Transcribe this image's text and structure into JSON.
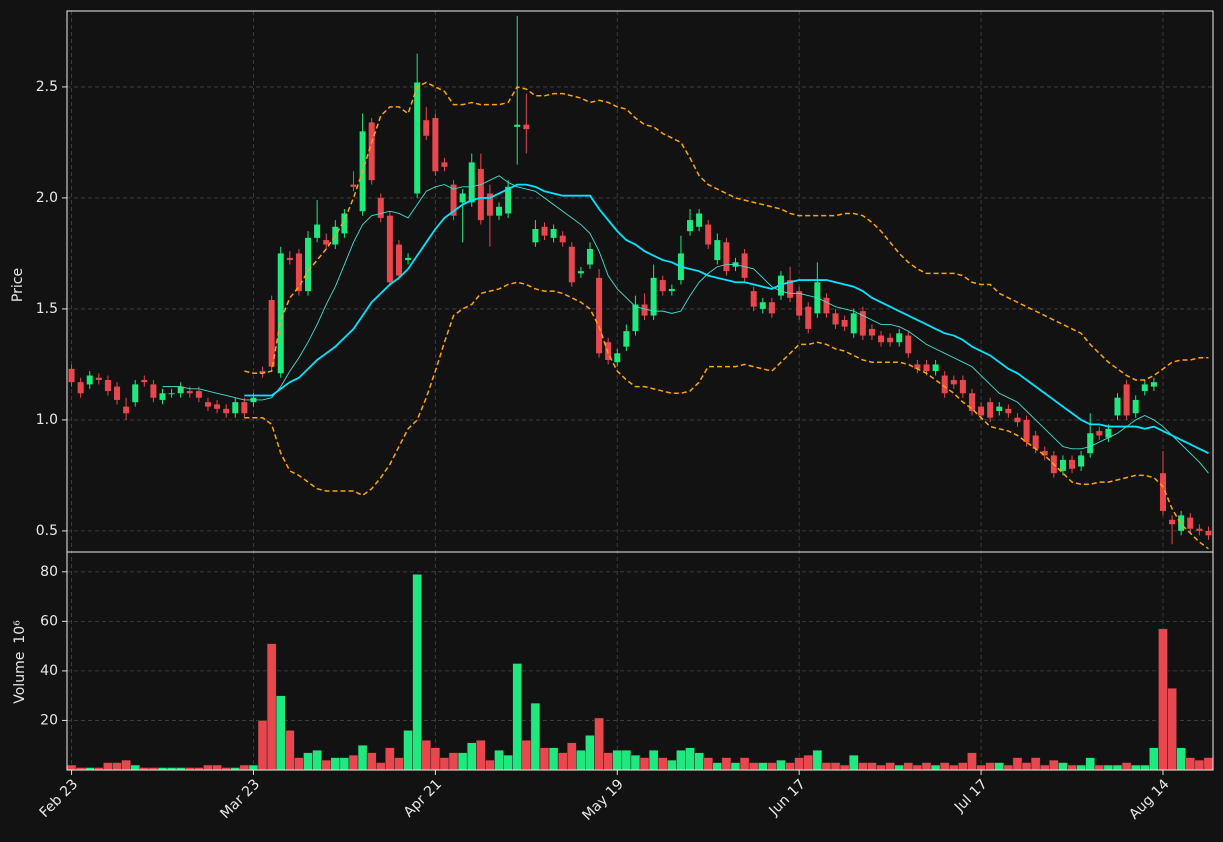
{
  "chart_data": {
    "type": "candlestick",
    "ylabel": "Price",
    "volume_label": "Volume",
    "volume_unit": "10⁶",
    "categories": [
      "Feb 23",
      null,
      null,
      null,
      null,
      null,
      null,
      null,
      null,
      null,
      null,
      null,
      null,
      null,
      null,
      null,
      null,
      null,
      null,
      null,
      "Mar 23",
      null,
      null,
      null,
      null,
      null,
      null,
      null,
      null,
      null,
      null,
      null,
      null,
      null,
      null,
      null,
      null,
      null,
      null,
      null,
      "Apr 21",
      null,
      null,
      null,
      null,
      null,
      null,
      null,
      null,
      null,
      null,
      null,
      null,
      null,
      null,
      null,
      null,
      null,
      null,
      null,
      "May 19",
      null,
      null,
      null,
      null,
      null,
      null,
      null,
      null,
      null,
      null,
      null,
      null,
      null,
      null,
      null,
      null,
      null,
      null,
      null,
      "Jun 17",
      null,
      null,
      null,
      null,
      null,
      null,
      null,
      null,
      null,
      null,
      null,
      null,
      null,
      null,
      null,
      null,
      null,
      null,
      null,
      "Jul 17",
      null,
      null,
      null,
      null,
      null,
      null,
      null,
      null,
      null,
      null,
      null,
      null,
      null,
      null,
      null,
      null,
      null,
      null,
      null,
      "Aug 14",
      null,
      null,
      null,
      null,
      null
    ],
    "open": [
      1.23,
      1.17,
      1.16,
      1.19,
      1.18,
      1.15,
      1.06,
      1.08,
      1.18,
      1.16,
      1.09,
      1.12,
      1.12,
      1.13,
      1.13,
      1.08,
      1.07,
      1.05,
      1.03,
      1.08,
      1.08,
      1.22,
      1.54,
      1.21,
      1.73,
      1.75,
      1.58,
      1.82,
      1.81,
      1.79,
      1.84,
      2.06,
      1.94,
      2.34,
      2.0,
      1.92,
      1.79,
      1.72,
      2.02,
      2.35,
      2.36,
      2.16,
      2.06,
      1.98,
      1.98,
      2.13,
      2.02,
      1.92,
      1.93,
      2.32,
      2.33,
      1.8,
      1.87,
      1.82,
      1.83,
      1.78,
      1.66,
      1.7,
      1.64,
      1.35,
      1.26,
      1.33,
      1.4,
      1.52,
      1.47,
      1.63,
      1.58,
      1.63,
      1.85,
      1.87,
      1.88,
      1.72,
      1.8,
      1.69,
      1.75,
      1.58,
      1.5,
      1.53,
      1.56,
      1.63,
      1.58,
      1.51,
      1.48,
      1.55,
      1.48,
      1.45,
      1.39,
      1.49,
      1.41,
      1.38,
      1.37,
      1.35,
      1.38,
      1.25,
      1.25,
      1.22,
      1.2,
      1.18,
      1.18,
      1.12,
      1.06,
      1.08,
      1.04,
      1.05,
      1.01,
      1.0,
      0.93,
      0.86,
      0.84,
      0.77,
      0.82,
      0.79,
      0.85,
      0.95,
      0.92,
      1.02,
      1.16,
      1.03,
      1.13,
      1.15,
      0.76,
      0.55,
      0.5,
      0.56,
      0.51,
      0.5
    ],
    "high": [
      1.25,
      1.19,
      1.22,
      1.21,
      1.2,
      1.17,
      1.1,
      1.18,
      1.2,
      1.18,
      1.14,
      1.14,
      1.17,
      1.15,
      1.15,
      1.1,
      1.09,
      1.07,
      1.1,
      1.1,
      1.12,
      1.24,
      1.56,
      1.78,
      1.76,
      1.77,
      1.85,
      1.99,
      1.84,
      1.9,
      1.95,
      2.12,
      2.38,
      2.36,
      2.02,
      1.94,
      1.81,
      1.75,
      2.65,
      2.41,
      2.38,
      2.18,
      2.08,
      2.04,
      2.2,
      2.2,
      2.06,
      1.98,
      2.08,
      2.82,
      2.47,
      1.9,
      1.89,
      1.88,
      1.85,
      1.8,
      1.69,
      1.8,
      1.68,
      1.37,
      1.32,
      1.43,
      1.56,
      1.57,
      1.7,
      1.65,
      1.61,
      1.83,
      1.95,
      1.95,
      1.9,
      1.84,
      1.82,
      1.73,
      1.77,
      1.6,
      1.55,
      1.55,
      1.67,
      1.69,
      1.6,
      1.53,
      1.71,
      1.57,
      1.5,
      1.47,
      1.5,
      1.51,
      1.43,
      1.4,
      1.39,
      1.41,
      1.4,
      1.27,
      1.27,
      1.27,
      1.22,
      1.2,
      1.2,
      1.14,
      1.08,
      1.1,
      1.08,
      1.07,
      1.03,
      1.02,
      0.95,
      0.88,
      0.86,
      0.84,
      0.84,
      0.86,
      1.03,
      0.97,
      0.98,
      1.12,
      1.18,
      1.11,
      1.18,
      1.19,
      0.86,
      0.57,
      0.59,
      0.58,
      0.53,
      0.52
    ],
    "low": [
      1.15,
      1.1,
      1.14,
      1.16,
      1.11,
      1.07,
      1.0,
      1.06,
      1.15,
      1.08,
      1.07,
      1.1,
      1.1,
      1.1,
      1.08,
      1.04,
      1.03,
      1.01,
      1.01,
      1.01,
      1.06,
      1.19,
      1.22,
      1.19,
      1.7,
      1.56,
      1.56,
      1.8,
      1.77,
      1.77,
      1.82,
      2.03,
      1.92,
      2.06,
      1.89,
      1.6,
      1.63,
      1.7,
      2.0,
      2.26,
      2.1,
      2.12,
      1.9,
      1.8,
      1.96,
      1.88,
      1.78,
      1.9,
      1.91,
      2.15,
      2.2,
      1.78,
      1.81,
      1.8,
      1.78,
      1.6,
      1.64,
      1.68,
      1.28,
      1.25,
      1.24,
      1.31,
      1.38,
      1.45,
      1.45,
      1.56,
      1.56,
      1.61,
      1.83,
      1.85,
      1.77,
      1.7,
      1.65,
      1.67,
      1.62,
      1.49,
      1.48,
      1.46,
      1.54,
      1.53,
      1.45,
      1.39,
      1.46,
      1.46,
      1.41,
      1.4,
      1.37,
      1.36,
      1.36,
      1.33,
      1.33,
      1.33,
      1.28,
      1.21,
      1.2,
      1.2,
      1.1,
      1.14,
      1.1,
      1.02,
      1.0,
      0.99,
      1.02,
      1.01,
      0.97,
      0.88,
      0.85,
      0.82,
      0.74,
      0.75,
      0.76,
      0.77,
      0.83,
      0.91,
      0.9,
      1.0,
      1.0,
      1.01,
      1.11,
      1.13,
      0.57,
      0.44,
      0.48,
      0.49,
      0.48,
      0.46
    ],
    "close": [
      1.17,
      1.12,
      1.2,
      1.18,
      1.13,
      1.09,
      1.03,
      1.16,
      1.17,
      1.1,
      1.12,
      1.12,
      1.15,
      1.12,
      1.1,
      1.06,
      1.05,
      1.03,
      1.08,
      1.03,
      1.1,
      1.21,
      1.24,
      1.75,
      1.72,
      1.58,
      1.82,
      1.88,
      1.79,
      1.87,
      1.93,
      2.05,
      2.3,
      2.08,
      1.91,
      1.62,
      1.65,
      1.73,
      2.52,
      2.28,
      2.12,
      2.14,
      1.92,
      2.02,
      2.16,
      1.9,
      1.92,
      1.96,
      2.05,
      2.33,
      2.31,
      1.86,
      1.83,
      1.86,
      1.8,
      1.62,
      1.67,
      1.77,
      1.3,
      1.27,
      1.3,
      1.4,
      1.52,
      1.47,
      1.64,
      1.58,
      1.59,
      1.75,
      1.9,
      1.93,
      1.79,
      1.81,
      1.67,
      1.71,
      1.64,
      1.51,
      1.53,
      1.48,
      1.65,
      1.55,
      1.47,
      1.41,
      1.62,
      1.48,
      1.43,
      1.42,
      1.48,
      1.38,
      1.38,
      1.35,
      1.35,
      1.39,
      1.3,
      1.23,
      1.22,
      1.25,
      1.12,
      1.16,
      1.12,
      1.04,
      1.02,
      1.01,
      1.06,
      1.03,
      0.99,
      0.9,
      0.87,
      0.84,
      0.76,
      0.82,
      0.78,
      0.84,
      0.94,
      0.93,
      0.96,
      1.1,
      1.02,
      1.09,
      1.16,
      1.17,
      0.59,
      0.53,
      0.57,
      0.51,
      0.5,
      0.48
    ],
    "volume": [
      2,
      1,
      1,
      1,
      3,
      3,
      4,
      2,
      1,
      1,
      1,
      1,
      1,
      1,
      1,
      2,
      2,
      1,
      1,
      2,
      2,
      20,
      51,
      30,
      16,
      5,
      7,
      8,
      4,
      5,
      5,
      6,
      10,
      7,
      3,
      9,
      5,
      16,
      79,
      12,
      9,
      5,
      7,
      7,
      11,
      12,
      4,
      8,
      6,
      43,
      12,
      27,
      9,
      9,
      7,
      11,
      8,
      14,
      21,
      7,
      8,
      8,
      6,
      5,
      8,
      5,
      4,
      8,
      9,
      7,
      5,
      3,
      5,
      3,
      5,
      3,
      3,
      3,
      4,
      3,
      5,
      6,
      8,
      3,
      3,
      2,
      6,
      3,
      3,
      2,
      3,
      2,
      3,
      2,
      3,
      2,
      3,
      2,
      3,
      7,
      2,
      3,
      3,
      2,
      5,
      3,
      5,
      2,
      4,
      3,
      2,
      2,
      5,
      2,
      2,
      2,
      3,
      2,
      2,
      9,
      57,
      33,
      9,
      5,
      4,
      5
    ],
    "up_color": "#1ee87e",
    "down_color": "#e8474e",
    "lines": [
      {
        "color": "#40e0d0",
        "linewidth": 0.9,
        "style": "solid",
        "values": [
          null,
          null,
          null,
          null,
          null,
          null,
          null,
          null,
          null,
          null,
          1.15,
          1.15,
          1.15,
          1.14,
          1.14,
          1.13,
          1.12,
          1.11,
          1.1,
          1.09,
          1.09,
          1.09,
          1.1,
          1.15,
          1.22,
          1.28,
          1.35,
          1.43,
          1.52,
          1.6,
          1.7,
          1.8,
          1.88,
          1.92,
          1.93,
          1.94,
          1.93,
          1.91,
          1.97,
          2.03,
          2.05,
          2.06,
          2.04,
          2.05,
          2.05,
          2.06,
          2.08,
          2.1,
          2.07,
          2.05,
          2.04,
          2.03,
          2.0,
          1.97,
          1.94,
          1.91,
          1.88,
          1.84,
          1.76,
          1.65,
          1.59,
          1.55,
          1.51,
          1.5,
          1.49,
          1.49,
          1.48,
          1.49,
          1.56,
          1.62,
          1.66,
          1.69,
          1.7,
          1.7,
          1.69,
          1.68,
          1.64,
          1.6,
          1.58,
          1.57,
          1.57,
          1.56,
          1.55,
          1.53,
          1.51,
          1.5,
          1.49,
          1.47,
          1.45,
          1.43,
          1.43,
          1.42,
          1.4,
          1.37,
          1.34,
          1.32,
          1.3,
          1.28,
          1.26,
          1.24,
          1.2,
          1.16,
          1.12,
          1.1,
          1.08,
          1.04,
          1.0,
          0.96,
          0.92,
          0.88,
          0.87,
          0.87,
          0.88,
          0.9,
          0.92,
          0.94,
          0.97,
          1.0,
          1.02,
          1.0,
          0.97,
          0.93,
          0.89,
          0.85,
          0.81,
          0.76
        ]
      },
      {
        "color": "#00e5ff",
        "linewidth": 1.8,
        "style": "solid",
        "values": [
          null,
          null,
          null,
          null,
          null,
          null,
          null,
          null,
          null,
          null,
          null,
          null,
          null,
          null,
          null,
          null,
          null,
          null,
          null,
          1.11,
          1.11,
          1.11,
          1.11,
          1.14,
          1.17,
          1.19,
          1.23,
          1.27,
          1.3,
          1.33,
          1.37,
          1.41,
          1.47,
          1.53,
          1.57,
          1.61,
          1.64,
          1.68,
          1.74,
          1.8,
          1.86,
          1.91,
          1.94,
          1.97,
          1.99,
          2.0,
          2.0,
          2.02,
          2.04,
          2.06,
          2.06,
          2.05,
          2.03,
          2.02,
          2.01,
          2.01,
          2.01,
          2.01,
          1.95,
          1.9,
          1.85,
          1.81,
          1.79,
          1.76,
          1.74,
          1.72,
          1.71,
          1.69,
          1.68,
          1.67,
          1.65,
          1.64,
          1.63,
          1.62,
          1.62,
          1.61,
          1.6,
          1.59,
          1.61,
          1.62,
          1.63,
          1.63,
          1.63,
          1.63,
          1.62,
          1.61,
          1.6,
          1.58,
          1.55,
          1.53,
          1.51,
          1.49,
          1.47,
          1.45,
          1.43,
          1.41,
          1.39,
          1.38,
          1.36,
          1.33,
          1.31,
          1.29,
          1.26,
          1.23,
          1.21,
          1.18,
          1.15,
          1.12,
          1.09,
          1.06,
          1.03,
          1.0,
          0.98,
          0.98,
          0.97,
          0.97,
          0.97,
          0.97,
          0.96,
          0.97,
          0.95,
          0.93,
          0.91,
          0.89,
          0.87,
          0.85
        ]
      },
      {
        "color": "#ffa500",
        "linewidth": 1.5,
        "style": "dashed",
        "values": [
          null,
          null,
          null,
          null,
          null,
          null,
          null,
          null,
          null,
          null,
          null,
          null,
          null,
          null,
          null,
          null,
          null,
          null,
          null,
          1.22,
          1.21,
          1.21,
          1.22,
          1.45,
          1.55,
          1.6,
          1.67,
          1.72,
          1.77,
          1.83,
          1.9,
          2.0,
          2.12,
          2.25,
          2.37,
          2.41,
          2.41,
          2.38,
          2.5,
          2.52,
          2.5,
          2.48,
          2.42,
          2.42,
          2.43,
          2.42,
          2.42,
          2.42,
          2.43,
          2.5,
          2.49,
          2.46,
          2.46,
          2.47,
          2.47,
          2.46,
          2.45,
          2.43,
          2.44,
          2.43,
          2.41,
          2.4,
          2.36,
          2.33,
          2.32,
          2.29,
          2.27,
          2.25,
          2.18,
          2.1,
          2.06,
          2.04,
          2.02,
          2.0,
          1.99,
          1.98,
          1.97,
          1.96,
          1.95,
          1.93,
          1.92,
          1.92,
          1.92,
          1.92,
          1.92,
          1.93,
          1.93,
          1.92,
          1.89,
          1.85,
          1.8,
          1.75,
          1.71,
          1.68,
          1.66,
          1.66,
          1.66,
          1.66,
          1.65,
          1.62,
          1.61,
          1.61,
          1.57,
          1.55,
          1.53,
          1.51,
          1.49,
          1.47,
          1.45,
          1.43,
          1.41,
          1.39,
          1.34,
          1.3,
          1.26,
          1.23,
          1.2,
          1.18,
          1.18,
          1.2,
          1.23,
          1.26,
          1.27,
          1.27,
          1.28,
          1.28
        ]
      },
      {
        "color": "#ffa500",
        "linewidth": 1.5,
        "style": "dashed",
        "values": [
          null,
          null,
          null,
          null,
          null,
          null,
          null,
          null,
          null,
          null,
          null,
          null,
          null,
          null,
          null,
          null,
          null,
          null,
          null,
          1.01,
          1.01,
          1.01,
          0.98,
          0.85,
          0.77,
          0.75,
          0.72,
          0.69,
          0.68,
          0.68,
          0.68,
          0.68,
          0.66,
          0.69,
          0.74,
          0.8,
          0.88,
          0.96,
          1.0,
          1.1,
          1.22,
          1.35,
          1.47,
          1.5,
          1.52,
          1.57,
          1.58,
          1.59,
          1.61,
          1.62,
          1.61,
          1.59,
          1.58,
          1.58,
          1.57,
          1.55,
          1.53,
          1.5,
          1.42,
          1.3,
          1.22,
          1.18,
          1.15,
          1.15,
          1.14,
          1.13,
          1.12,
          1.12,
          1.13,
          1.17,
          1.24,
          1.24,
          1.24,
          1.24,
          1.25,
          1.24,
          1.23,
          1.22,
          1.26,
          1.3,
          1.34,
          1.34,
          1.35,
          1.34,
          1.32,
          1.31,
          1.29,
          1.27,
          1.26,
          1.26,
          1.26,
          1.26,
          1.25,
          1.23,
          1.21,
          1.18,
          1.15,
          1.12,
          1.08,
          1.05,
          1.01,
          0.97,
          0.96,
          0.95,
          0.93,
          0.9,
          0.87,
          0.84,
          0.8,
          0.76,
          0.72,
          0.71,
          0.71,
          0.72,
          0.72,
          0.73,
          0.74,
          0.75,
          0.75,
          0.74,
          0.7,
          0.6,
          0.53,
          0.49,
          0.45,
          0.42
        ]
      }
    ],
    "ylim": [
      0.405,
      2.842
    ],
    "yticks": [
      0.5,
      {
        "value": 1,
        "label": "1.0"
      },
      1.5,
      {
        "value": 2,
        "label": "2.0"
      },
      2.5
    ],
    "volume_ylim": [
      0,
      88
    ],
    "volume_ticks": [
      20,
      40,
      60,
      80
    ],
    "grid": true
  }
}
